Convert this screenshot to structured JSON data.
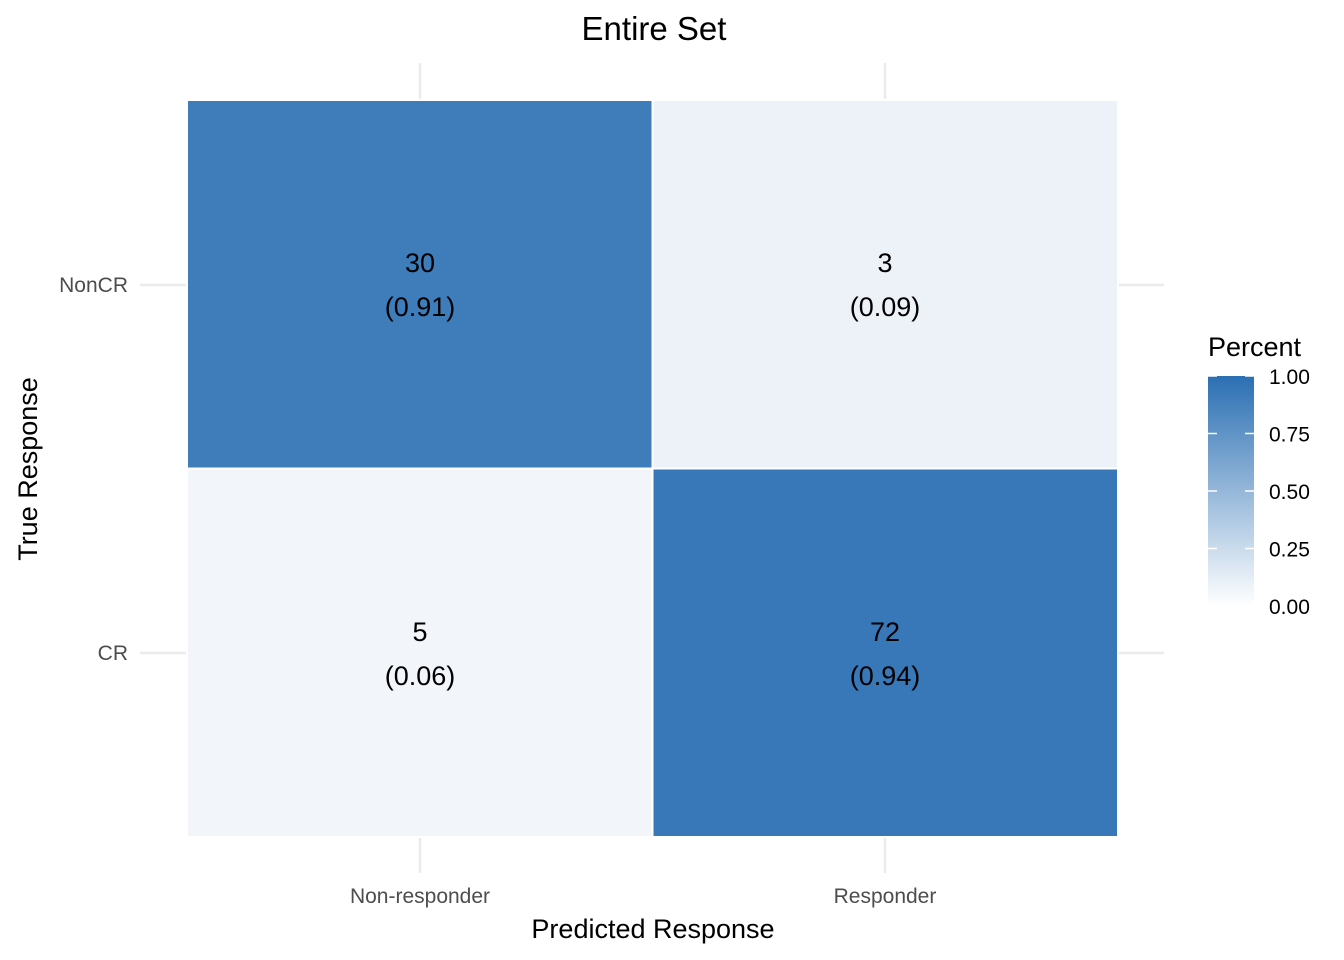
{
  "chart_data": {
    "type": "heatmap",
    "title": "Entire Set",
    "xlabel": "Predicted Response",
    "ylabel": "True Response",
    "x_categories": [
      "Non-responder",
      "Responder"
    ],
    "y_categories": [
      "NonCR",
      "CR"
    ],
    "cells": [
      {
        "x": "Non-responder",
        "y": "NonCR",
        "count": "30",
        "prop_label": "(0.91)",
        "value": 0.91
      },
      {
        "x": "Responder",
        "y": "NonCR",
        "count": "3",
        "prop_label": "(0.09)",
        "value": 0.09
      },
      {
        "x": "Non-responder",
        "y": "CR",
        "count": "5",
        "prop_label": "(0.06)",
        "value": 0.06
      },
      {
        "x": "Responder",
        "y": "CR",
        "count": "72",
        "prop_label": "(0.94)",
        "value": 0.94
      }
    ],
    "legend": {
      "title": "Percent",
      "ticks": [
        "0.00",
        "0.25",
        "0.50",
        "0.75",
        "1.00"
      ],
      "range": [
        0,
        1
      ],
      "low_color": "#ffffff",
      "high_color": "#2b6fb3"
    },
    "grid": true
  }
}
